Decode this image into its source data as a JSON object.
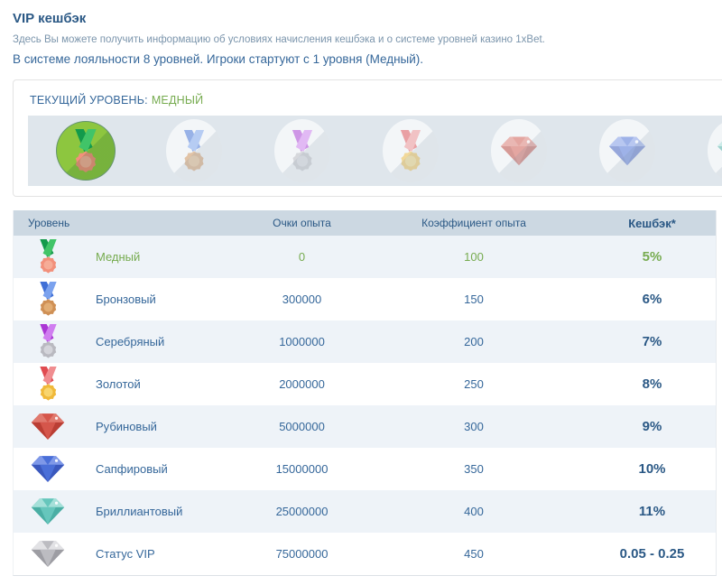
{
  "page": {
    "title": "VIP кешбэк",
    "subtitle": "Здесь Вы можете получить информацию об условиях начисления кешбэка и о системе уровней казино 1xBet.",
    "intro": "В системе лояльности 8 уровней. Игроки стартуют с 1 уровня (Медный)."
  },
  "current_level": {
    "label": "ТЕКУЩИЙ УРОВЕНЬ:",
    "value": "МЕДНЫЙ"
  },
  "levels_strip": [
    {
      "icon": "copper-medal",
      "active": true
    },
    {
      "icon": "bronze-medal",
      "active": false
    },
    {
      "icon": "silver-medal",
      "active": false
    },
    {
      "icon": "gold-medal",
      "active": false
    },
    {
      "icon": "ruby-gem",
      "active": false
    },
    {
      "icon": "sapphire-gem",
      "active": false
    },
    {
      "icon": "diamond-gem",
      "active": false
    }
  ],
  "table": {
    "headers": [
      "Уровень",
      "Очки опыта",
      "Коэффициент опыта",
      "Кешбэк*"
    ],
    "rows": [
      {
        "icon": "copper-medal",
        "level": "Медный",
        "xp": "0",
        "coef": "100",
        "cashback": "5%",
        "current": true
      },
      {
        "icon": "bronze-medal",
        "level": "Бронзовый",
        "xp": "300000",
        "coef": "150",
        "cashback": "6%",
        "current": false
      },
      {
        "icon": "silver-medal",
        "level": "Серебряный",
        "xp": "1000000",
        "coef": "200",
        "cashback": "7%",
        "current": false
      },
      {
        "icon": "gold-medal",
        "level": "Золотой",
        "xp": "2000000",
        "coef": "250",
        "cashback": "8%",
        "current": false
      },
      {
        "icon": "ruby-gem",
        "level": "Рубиновый",
        "xp": "5000000",
        "coef": "300",
        "cashback": "9%",
        "current": false
      },
      {
        "icon": "sapphire-gem",
        "level": "Сапфировый",
        "xp": "15000000",
        "coef": "350",
        "cashback": "10%",
        "current": false
      },
      {
        "icon": "diamond-gem",
        "level": "Бриллиантовый",
        "xp": "25000000",
        "coef": "400",
        "cashback": "11%",
        "current": false
      },
      {
        "icon": "vip-gem",
        "level": "Статус VIP",
        "xp": "75000000",
        "coef": "450",
        "cashback": "0.05 - 0.25",
        "current": false
      }
    ]
  },
  "colors": {
    "accent_green": "#76ab4f",
    "active_circle_green": "#8dc63f",
    "heading_blue": "#2a5885",
    "text_blue": "#35679a",
    "muted_blue": "#7b95ac",
    "header_bg": "#ccd8e2",
    "row_alt_bg": "#eef3f8",
    "strip_bg": "#dfe6ec",
    "box_border": "#e3e3e3"
  }
}
